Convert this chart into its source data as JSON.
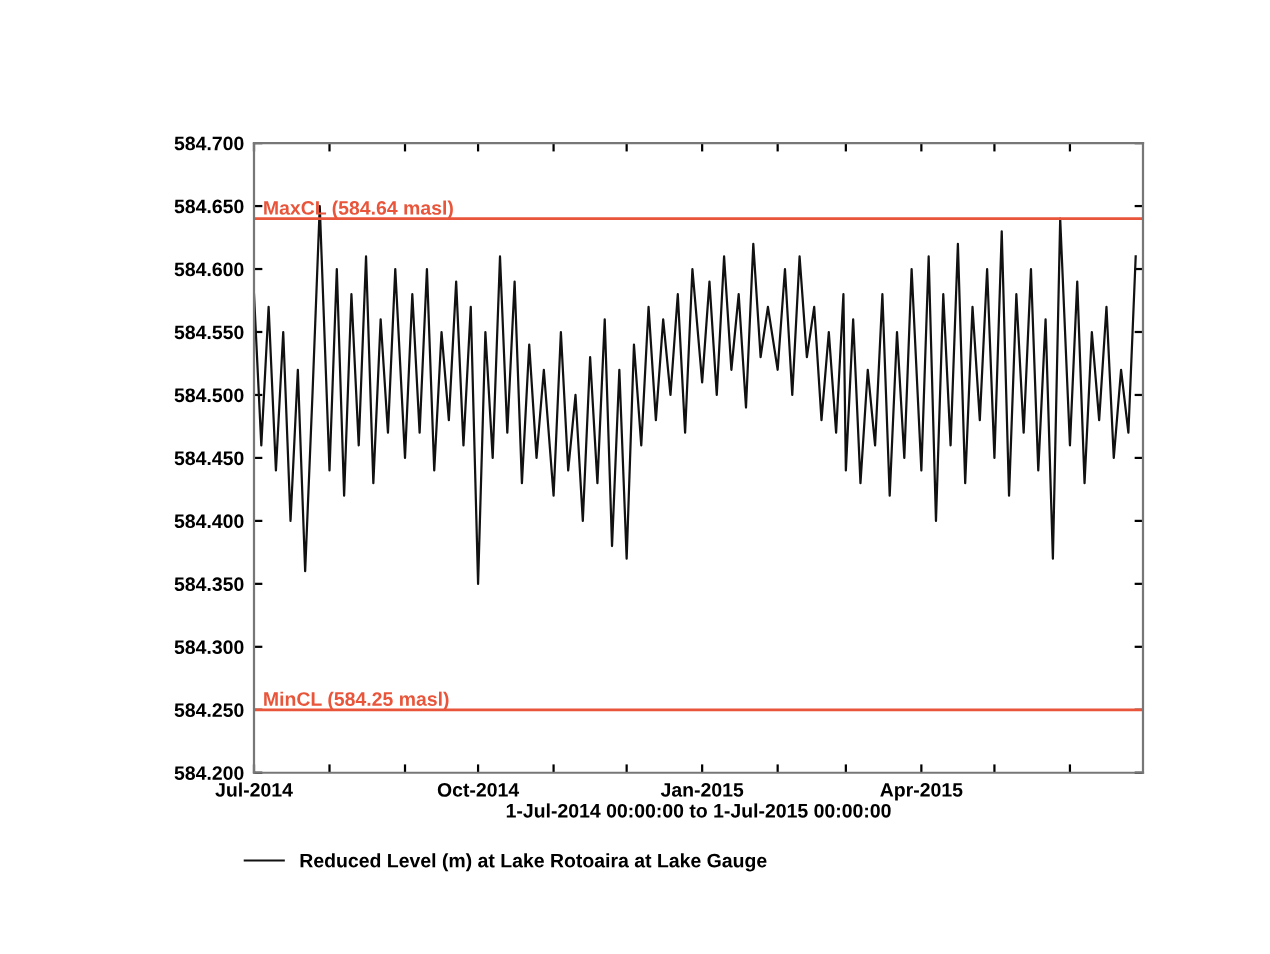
{
  "chart_data": {
    "type": "line",
    "xlabel": "1-Jul-2014 00:00:00 to 1-Jul-2015 00:00:00",
    "legend": "bottom",
    "grid": false,
    "marker": "none",
    "line_style": "solid",
    "xlim": [
      "2014-07-01",
      "2015-07-01"
    ],
    "xticks": [
      {
        "value": "2014-07-01",
        "label": "Jul-2014"
      },
      {
        "value": "2014-08-01",
        "label": null
      },
      {
        "value": "2014-09-01",
        "label": null
      },
      {
        "value": "2014-10-01",
        "label": "Oct-2014"
      },
      {
        "value": "2014-11-01",
        "label": null
      },
      {
        "value": "2014-12-01",
        "label": null
      },
      {
        "value": "2015-01-01",
        "label": "Jan-2015"
      },
      {
        "value": "2015-02-01",
        "label": null
      },
      {
        "value": "2015-03-01",
        "label": null
      },
      {
        "value": "2015-04-01",
        "label": "Apr-2015"
      },
      {
        "value": "2015-05-01",
        "label": null
      },
      {
        "value": "2015-06-01",
        "label": null
      }
    ],
    "ylim": [
      584.2,
      584.7
    ],
    "yticks": [
      {
        "value": 584.2,
        "label": "584.200"
      },
      {
        "value": 584.25,
        "label": "584.250"
      },
      {
        "value": 584.3,
        "label": "584.300"
      },
      {
        "value": 584.35,
        "label": "584.350"
      },
      {
        "value": 584.4,
        "label": "584.400"
      },
      {
        "value": 584.45,
        "label": "584.450"
      },
      {
        "value": 584.5,
        "label": "584.500"
      },
      {
        "value": 584.55,
        "label": "584.550"
      },
      {
        "value": 584.6,
        "label": "584.600"
      },
      {
        "value": 584.65,
        "label": "584.650"
      },
      {
        "value": 584.7,
        "label": "584.700"
      }
    ],
    "ref_lines": [
      {
        "axis": "y",
        "value": 584.64,
        "label": "MaxCL (584.64 masl)",
        "color": "#e8553a"
      },
      {
        "axis": "y",
        "value": 584.25,
        "label": "MinCL (584.25 masl)",
        "color": "#e8553a"
      }
    ],
    "x": [
      "2014-07-01",
      "2014-07-04",
      "2014-07-07",
      "2014-07-10",
      "2014-07-13",
      "2014-07-16",
      "2014-07-19",
      "2014-07-22",
      "2014-07-25",
      "2014-07-28",
      "2014-08-01",
      "2014-08-04",
      "2014-08-07",
      "2014-08-10",
      "2014-08-13",
      "2014-08-16",
      "2014-08-19",
      "2014-08-22",
      "2014-08-25",
      "2014-08-28",
      "2014-09-01",
      "2014-09-04",
      "2014-09-07",
      "2014-09-10",
      "2014-09-13",
      "2014-09-16",
      "2014-09-19",
      "2014-09-22",
      "2014-09-25",
      "2014-09-28",
      "2014-10-01",
      "2014-10-04",
      "2014-10-07",
      "2014-10-10",
      "2014-10-13",
      "2014-10-16",
      "2014-10-19",
      "2014-10-22",
      "2014-10-25",
      "2014-10-28",
      "2014-11-01",
      "2014-11-04",
      "2014-11-07",
      "2014-11-10",
      "2014-11-13",
      "2014-11-16",
      "2014-11-19",
      "2014-11-22",
      "2014-11-25",
      "2014-11-28",
      "2014-12-01",
      "2014-12-04",
      "2014-12-07",
      "2014-12-10",
      "2014-12-13",
      "2014-12-16",
      "2014-12-19",
      "2014-12-22",
      "2014-12-25",
      "2014-12-28",
      "2015-01-01",
      "2015-01-04",
      "2015-01-07",
      "2015-01-10",
      "2015-01-13",
      "2015-01-16",
      "2015-01-19",
      "2015-01-22",
      "2015-01-25",
      "2015-01-28",
      "2015-02-01",
      "2015-02-04",
      "2015-02-07",
      "2015-02-10",
      "2015-02-13",
      "2015-02-16",
      "2015-02-19",
      "2015-02-22",
      "2015-02-25",
      "2015-02-28",
      "2015-03-01",
      "2015-03-04",
      "2015-03-07",
      "2015-03-10",
      "2015-03-13",
      "2015-03-16",
      "2015-03-19",
      "2015-03-22",
      "2015-03-25",
      "2015-03-28",
      "2015-04-01",
      "2015-04-04",
      "2015-04-07",
      "2015-04-10",
      "2015-04-13",
      "2015-04-16",
      "2015-04-19",
      "2015-04-22",
      "2015-04-25",
      "2015-04-28",
      "2015-05-01",
      "2015-05-04",
      "2015-05-07",
      "2015-05-10",
      "2015-05-13",
      "2015-05-16",
      "2015-05-19",
      "2015-05-22",
      "2015-05-25",
      "2015-05-28",
      "2015-06-01",
      "2015-06-04",
      "2015-06-07",
      "2015-06-10",
      "2015-06-13",
      "2015-06-16",
      "2015-06-19",
      "2015-06-22",
      "2015-06-25",
      "2015-06-28"
    ],
    "series": [
      {
        "name": "Reduced Level (m) at Lake Rotoaira at Lake Gauge",
        "color": "#111111",
        "values": [
          584.58,
          584.46,
          584.57,
          584.44,
          584.55,
          584.4,
          584.52,
          584.36,
          584.5,
          584.65,
          584.44,
          584.6,
          584.42,
          584.58,
          584.46,
          584.61,
          584.43,
          584.56,
          584.47,
          584.6,
          584.45,
          584.58,
          584.47,
          584.6,
          584.44,
          584.55,
          584.48,
          584.59,
          584.46,
          584.57,
          584.35,
          584.55,
          584.45,
          584.61,
          584.47,
          584.59,
          584.43,
          584.54,
          584.45,
          584.52,
          584.42,
          584.55,
          584.44,
          584.5,
          584.4,
          584.53,
          584.43,
          584.56,
          584.38,
          584.52,
          584.37,
          584.54,
          584.46,
          584.57,
          584.48,
          584.56,
          584.5,
          584.58,
          584.47,
          584.6,
          584.51,
          584.59,
          584.5,
          584.61,
          584.52,
          584.58,
          584.49,
          584.62,
          584.53,
          584.57,
          584.52,
          584.6,
          584.5,
          584.61,
          584.53,
          584.57,
          584.48,
          584.55,
          584.47,
          584.58,
          584.44,
          584.56,
          584.43,
          584.52,
          584.46,
          584.58,
          584.42,
          584.55,
          584.45,
          584.6,
          584.44,
          584.61,
          584.4,
          584.58,
          584.46,
          584.62,
          584.43,
          584.57,
          584.48,
          584.6,
          584.45,
          584.63,
          584.42,
          584.58,
          584.47,
          584.6,
          584.44,
          584.56,
          584.37,
          584.64,
          584.46,
          584.59,
          584.43,
          584.55,
          584.48,
          584.57,
          584.45,
          584.52,
          584.47,
          584.61
        ]
      }
    ]
  }
}
